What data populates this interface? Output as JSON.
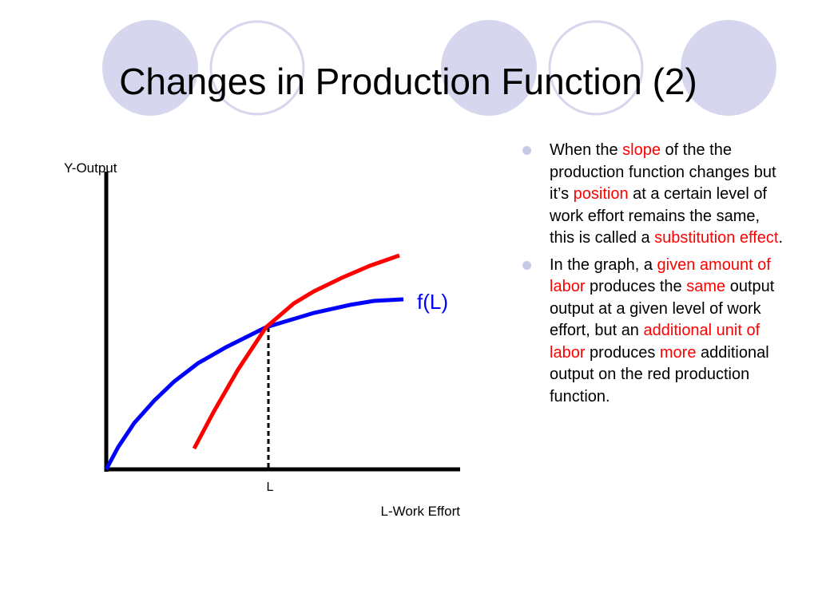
{
  "title": "Changes in Production Function (2)",
  "diagram": {
    "y_axis_label": "Y-Output",
    "x_axis_label": "L-Work Effort",
    "x_marker_label": "L",
    "curve_label": "f(L)"
  },
  "bullets": [
    {
      "runs": [
        {
          "text": "When the ",
          "highlight": false
        },
        {
          "text": "slope",
          "highlight": true
        },
        {
          "text": " of the the production function changes but it’s ",
          "highlight": false
        },
        {
          "text": "position",
          "highlight": true
        },
        {
          "text": " at a certain level of work effort remains the same, this is called a ",
          "highlight": false
        },
        {
          "text": "substitution effect",
          "highlight": true
        },
        {
          "text": ".",
          "highlight": false
        }
      ]
    },
    {
      "runs": [
        {
          "text": "In the graph, a ",
          "highlight": false
        },
        {
          "text": "given amount of labor",
          "highlight": true
        },
        {
          "text": " produces the ",
          "highlight": false
        },
        {
          "text": "same",
          "highlight": true
        },
        {
          "text": " output output at a given level of work effort, but an ",
          "highlight": false
        },
        {
          "text": "additional unit of labor",
          "highlight": true
        },
        {
          "text": " produces ",
          "highlight": false
        },
        {
          "text": "more",
          "highlight": true
        },
        {
          "text": " additional output on the red production function.",
          "highlight": false
        }
      ]
    }
  ]
}
